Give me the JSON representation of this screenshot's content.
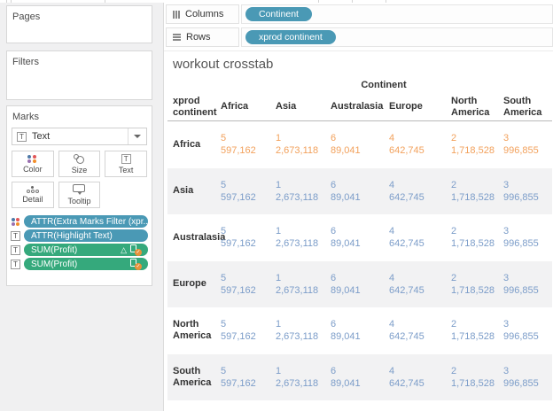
{
  "colors": {
    "dimension_pill": "#4a99b5",
    "measure_pill": "#35a97c",
    "orange_text": "#f2a15c",
    "blue_text": "#7c9dc9",
    "row_band": "#f2f2f3",
    "color_dots": [
      "#4e79a7",
      "#e15759",
      "#9a6fb0",
      "#f28e2b"
    ],
    "badge_accent": "#e8913a"
  },
  "icons": {
    "columns": "columns-grid-icon",
    "rows": "rows-list-icon",
    "mark_type": "text-icon",
    "dropdown": "chevron-down-icon",
    "color_button": "color-dots-icon",
    "size_button": "size-circles-icon",
    "text_button": "text-icon",
    "detail_button": "detail-dots-icon",
    "tooltip_button": "tooltip-bubble-icon",
    "table_calc": "delta-icon",
    "label_badge": "label-check-badge-icon"
  },
  "sidebar": {
    "pages_label": "Pages",
    "filters_label": "Filters",
    "marks": {
      "label": "Marks",
      "mark_type": "Text",
      "buttons": [
        {
          "label": "Color",
          "icon": "color-dots-icon"
        },
        {
          "label": "Size",
          "icon": "size-circles-icon"
        },
        {
          "label": "Text",
          "icon": "text-icon"
        },
        {
          "label": "Detail",
          "icon": "detail-dots-icon"
        },
        {
          "label": "Tooltip",
          "icon": "tooltip-bubble-icon"
        }
      ],
      "pills": [
        {
          "label": "ATTR(Extra Marks Filter (xpr..",
          "kind": "dimension",
          "lead": "color-dots-icon",
          "delta": false,
          "badge": false
        },
        {
          "label": "ATTR(Highlight Text)",
          "kind": "dimension",
          "lead": "text-icon",
          "delta": false,
          "badge": false
        },
        {
          "label": "SUM(Profit)",
          "kind": "measure",
          "lead": "text-icon",
          "delta": true,
          "badge": true
        },
        {
          "label": "SUM(Profit)",
          "kind": "measure",
          "lead": "text-icon",
          "delta": false,
          "badge": true
        }
      ]
    }
  },
  "shelves": {
    "columns": {
      "label": "Columns",
      "pill": "Continent"
    },
    "rows": {
      "label": "Rows",
      "pill": "xprod continent"
    }
  },
  "sheet": {
    "title": "workout crosstab",
    "table": {
      "col_group_header": "Continent",
      "corner_header": "xprod continent",
      "col_headers": [
        "Africa",
        "Asia",
        "Australasia",
        "Europe",
        "North America",
        "South America"
      ],
      "rows": [
        {
          "label": "Africa",
          "color": "orange",
          "band": false,
          "cells": [
            [
              "5",
              "597,162"
            ],
            [
              "1",
              "2,673,118"
            ],
            [
              "6",
              "89,041"
            ],
            [
              "4",
              "642,745"
            ],
            [
              "2",
              "1,718,528"
            ],
            [
              "3",
              "996,855"
            ]
          ]
        },
        {
          "label": "Asia",
          "color": "blue",
          "band": true,
          "cells": [
            [
              "5",
              "597,162"
            ],
            [
              "1",
              "2,673,118"
            ],
            [
              "6",
              "89,041"
            ],
            [
              "4",
              "642,745"
            ],
            [
              "2",
              "1,718,528"
            ],
            [
              "3",
              "996,855"
            ]
          ]
        },
        {
          "label": "Australasia",
          "color": "blue",
          "band": false,
          "cells": [
            [
              "5",
              "597,162"
            ],
            [
              "1",
              "2,673,118"
            ],
            [
              "6",
              "89,041"
            ],
            [
              "4",
              "642,745"
            ],
            [
              "2",
              "1,718,528"
            ],
            [
              "3",
              "996,855"
            ]
          ]
        },
        {
          "label": "Europe",
          "color": "blue",
          "band": true,
          "cells": [
            [
              "5",
              "597,162"
            ],
            [
              "1",
              "2,673,118"
            ],
            [
              "6",
              "89,041"
            ],
            [
              "4",
              "642,745"
            ],
            [
              "2",
              "1,718,528"
            ],
            [
              "3",
              "996,855"
            ]
          ]
        },
        {
          "label": "North America",
          "color": "blue",
          "band": false,
          "cells": [
            [
              "5",
              "597,162"
            ],
            [
              "1",
              "2,673,118"
            ],
            [
              "6",
              "89,041"
            ],
            [
              "4",
              "642,745"
            ],
            [
              "2",
              "1,718,528"
            ],
            [
              "3",
              "996,855"
            ]
          ]
        },
        {
          "label": "South America",
          "color": "blue",
          "band": true,
          "cells": [
            [
              "5",
              "597,162"
            ],
            [
              "1",
              "2,673,118"
            ],
            [
              "6",
              "89,041"
            ],
            [
              "4",
              "642,745"
            ],
            [
              "2",
              "1,718,528"
            ],
            [
              "3",
              "996,855"
            ]
          ]
        }
      ]
    }
  }
}
